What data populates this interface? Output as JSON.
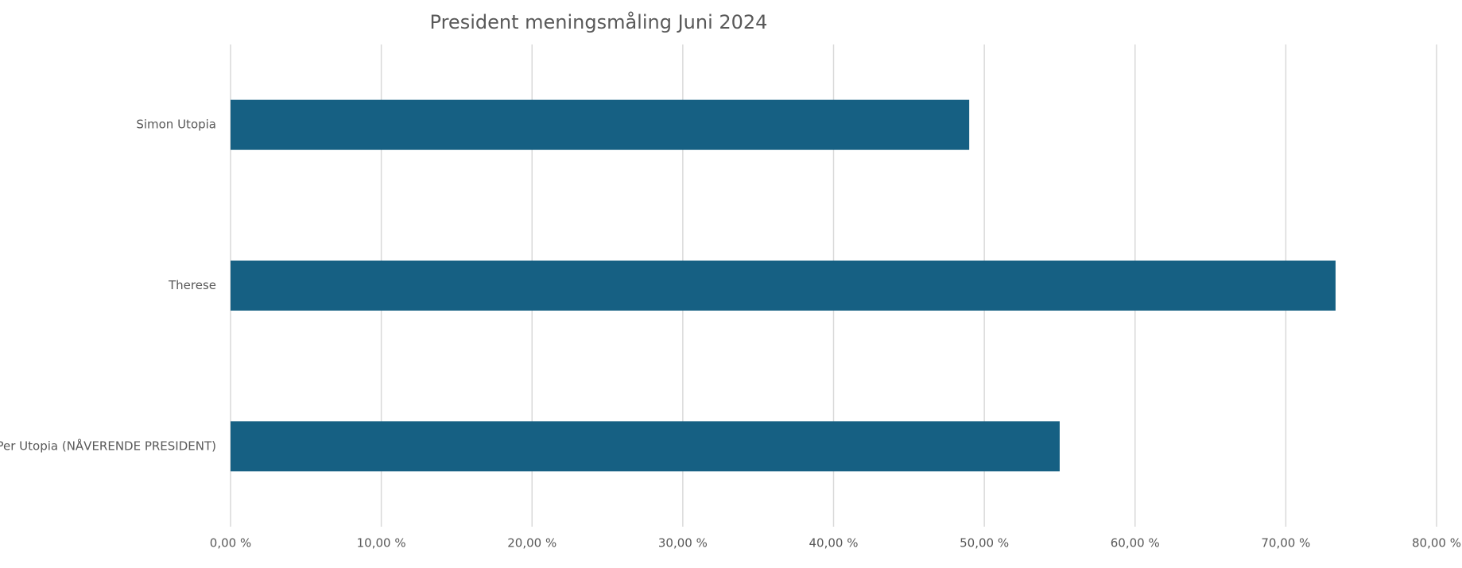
{
  "chart_data": {
    "type": "hbar",
    "title": "President meningsmåling Juni 2024",
    "categories": [
      "Simon Utopia",
      "Therese",
      "Per Utopia (NÅVERENDE PRESIDENT)"
    ],
    "values": [
      49,
      73.3,
      55
    ],
    "color": "#166083",
    "xlim": [
      0,
      80
    ],
    "xticks": [
      {
        "value": 0,
        "label": "0,00 %"
      },
      {
        "value": 10,
        "label": "10,00 %"
      },
      {
        "value": 20,
        "label": "20,00 %"
      },
      {
        "value": 30,
        "label": "30,00 %"
      },
      {
        "value": 40,
        "label": "40,00 %"
      },
      {
        "value": 50,
        "label": "50,00 %"
      },
      {
        "value": 60,
        "label": "60,00 %"
      },
      {
        "value": 70,
        "label": "70,00 %"
      },
      {
        "value": 80,
        "label": "80,00 %"
      }
    ],
    "grid": true
  }
}
